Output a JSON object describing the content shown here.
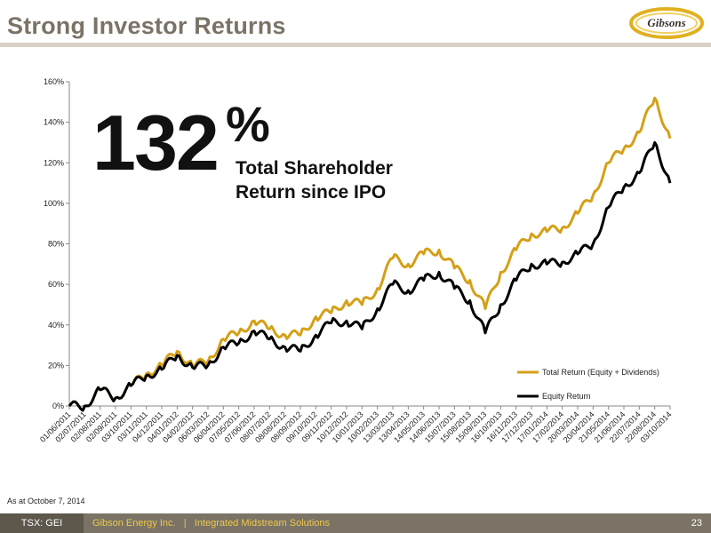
{
  "header": {
    "title": "Strong Investor Returns"
  },
  "logo": {
    "text": "Gibsons"
  },
  "callout": {
    "number": "132",
    "percent": "%",
    "line1": "Total Shareholder",
    "line2": "Return since IPO"
  },
  "footnote": "As at October 7, 2014",
  "footer": {
    "ticker": "TSX: GEI",
    "company": "Gibson Energy Inc.",
    "separator": "|",
    "tagline": "Integrated Midstream Solutions",
    "page": "23"
  },
  "colors": {
    "total_return": "#d4a017",
    "equity_return": "#000000",
    "footer_bg": "#7a7366",
    "title": "#7a7366"
  },
  "chart_data": {
    "type": "line",
    "title": "",
    "xlabel": "",
    "ylabel": "",
    "ylim": [
      0,
      160
    ],
    "y_ticks": [
      "0%",
      "20%",
      "40%",
      "60%",
      "80%",
      "100%",
      "120%",
      "140%",
      "160%"
    ],
    "y_tick_values": [
      0,
      20,
      40,
      60,
      80,
      100,
      120,
      140,
      160
    ],
    "x_tick_labels": [
      "01/06/2011",
      "02/07/2011",
      "02/08/2011",
      "02/09/2011",
      "03/10/2011",
      "03/11/2011",
      "04/12/2011",
      "04/01/2012",
      "04/02/2012",
      "06/03/2012",
      "06/04/2012",
      "07/05/2012",
      "07/06/2012",
      "08/07/2012",
      "08/08/2012",
      "08/09/2012",
      "09/10/2012",
      "09/11/2012",
      "10/12/2012",
      "10/01/2013",
      "10/02/2013",
      "13/03/2013",
      "13/04/2013",
      "14/05/2013",
      "14/06/2013",
      "15/07/2013",
      "15/08/2013",
      "15/09/2013",
      "16/10/2013",
      "16/11/2013",
      "17/12/2013",
      "17/01/2014",
      "17/02/2014",
      "20/03/2014",
      "20/04/2014",
      "21/05/2014",
      "21/06/2014",
      "22/07/2014",
      "22/08/2014",
      "03/10/2014"
    ],
    "grid": false,
    "legend_position": "bottom-right",
    "series": [
      {
        "name": "Total Return (Equity + Dividends)",
        "values": [
          0,
          0,
          8,
          4,
          10,
          16,
          20,
          27,
          20,
          22,
          33,
          36,
          42,
          38,
          35,
          35,
          44,
          46,
          52,
          50,
          58,
          73,
          70,
          75,
          77,
          68,
          62,
          48,
          66,
          77,
          85,
          86,
          88,
          95,
          104,
          120,
          127,
          135,
          152,
          132
        ]
      },
      {
        "name": "Equity Return",
        "values": [
          0,
          0,
          8,
          4,
          10,
          15,
          18,
          25,
          19,
          20,
          29,
          31,
          37,
          33,
          29,
          27,
          35,
          41,
          42,
          38,
          48,
          60,
          57,
          62,
          66,
          58,
          52,
          36,
          50,
          62,
          70,
          70,
          71,
          75,
          80,
          98,
          108,
          115,
          130,
          110
        ]
      }
    ]
  }
}
